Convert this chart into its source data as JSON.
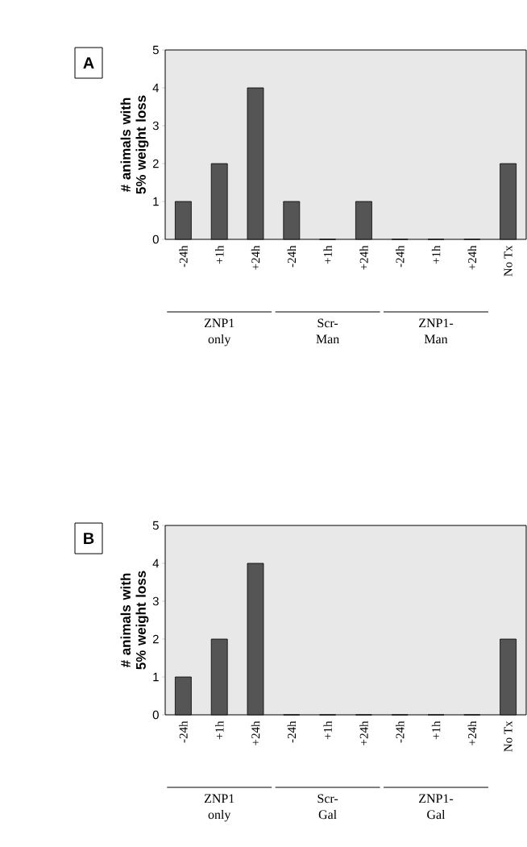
{
  "chart_data": [
    {
      "type": "bar",
      "title": "A",
      "ylabel": "# animals with 5% weight loss",
      "categories": [
        "-24h",
        "+1h",
        "+24h",
        "-24h",
        "+1h",
        "+24h",
        "-24h",
        "+1h",
        "+24h",
        "No Tx"
      ],
      "values": [
        1,
        2,
        4,
        1,
        0,
        1,
        0,
        0,
        0,
        2
      ],
      "color": "#555555",
      "ylim": [
        0,
        5
      ],
      "yticks": [
        0,
        1,
        2,
        3,
        4,
        5
      ],
      "annotations": [
        "ZNP1 only",
        "Scr-Man",
        "ZNP1-Man"
      ]
    },
    {
      "type": "bar",
      "title": "B",
      "ylabel": "# animals with 5% weight loss",
      "categories": [
        "-24h",
        "+1h",
        "+24h",
        "-24h",
        "+1h",
        "+24h",
        "-24h",
        "+1h",
        "+24h",
        "No Tx"
      ],
      "values": [
        1,
        2,
        4,
        0,
        0,
        0,
        0,
        0,
        0,
        2
      ],
      "color": "#555555",
      "ylim": [
        0,
        5
      ],
      "yticks": [
        0,
        1,
        2,
        3,
        4,
        5
      ],
      "annotations": [
        "ZNP1 only",
        "Scr-Gal",
        "ZNP1-Gal"
      ]
    }
  ]
}
